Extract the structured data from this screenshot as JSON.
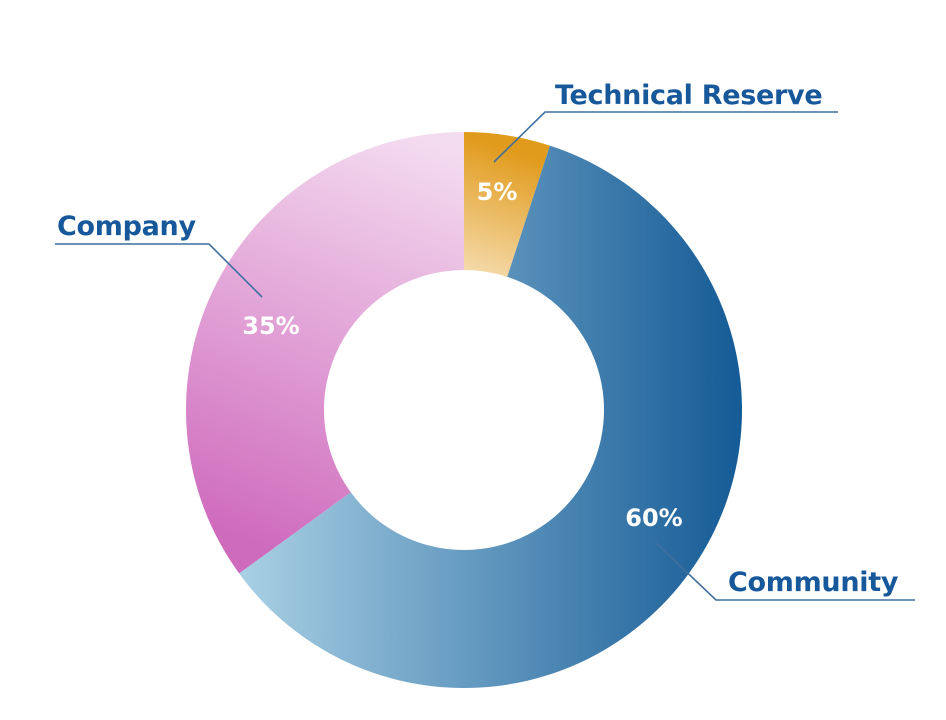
{
  "chart_data": {
    "type": "pie",
    "variant": "donut",
    "categories": [
      "Community",
      "Technical Reserve",
      "Company"
    ],
    "values": [
      60,
      5,
      35
    ],
    "value_labels": [
      "60%",
      "5%",
      "35%"
    ],
    "legend": "leader-line callouts",
    "title": ""
  },
  "colors": {
    "label": "#17589a",
    "leader_line": "#3e6f9f",
    "community_dark": "#155b96",
    "community_light": "#a9d0e4",
    "technical_reserve_dark": "#e19b1c",
    "technical_reserve_light": "#f4d9a8",
    "company_dark": "#cf6bbd",
    "company_light": "#f4dcf0"
  }
}
